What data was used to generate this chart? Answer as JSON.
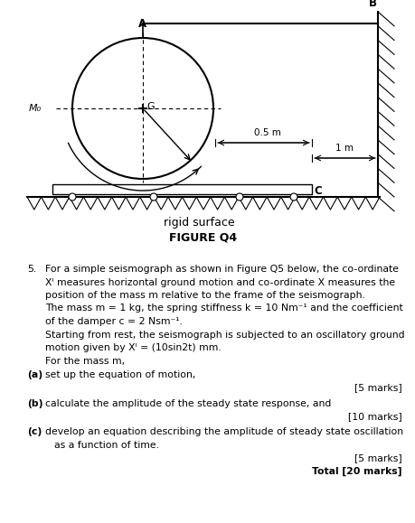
{
  "figure_label": "FIGURE Q4",
  "rigid_surface_label": "rigid surface",
  "question_number": "5.",
  "line1": "For a simple seismograph as shown in Figure Q5 below, the co-ordinate",
  "line2": "Xᴵ measures horizontal ground motion and co-ordinate X measures the",
  "line3": "position of the mass m relative to the frame of the seismograph.",
  "line4": "The mass m = 1 kg, the spring stiffness k = 10 Nm⁻¹ and the coefficient",
  "line5": "of the damper c = 2 Nsm⁻¹.",
  "line6": "Starting from rest, the seismograph is subjected to an oscillatory ground",
  "line7": "motion given by Xᴵ = (10sin2t) mm.",
  "line8": "For the mass m,",
  "part_a_label": "(a)",
  "part_a_text": "set up the equation of motion,",
  "part_a_marks": "[5 marks]",
  "part_b_label": "(b)",
  "part_b_text": "calculate the amplitude of the steady state response, and",
  "part_b_marks": "[10 marks]",
  "part_c_label": "(c)",
  "part_c_text1": "develop an equation describing the amplitude of steady state oscillation",
  "part_c_text2": "as a function of time.",
  "part_c_marks": "[5 marks]",
  "total_marks": "Total [20 marks]",
  "label_A": "A",
  "label_B": "B",
  "label_C": "C",
  "label_G": "G",
  "label_M0": "M₀",
  "label_05m": "0.5 m",
  "label_1m": "1 m",
  "bg_color": "#ffffff",
  "text_color": "#000000"
}
